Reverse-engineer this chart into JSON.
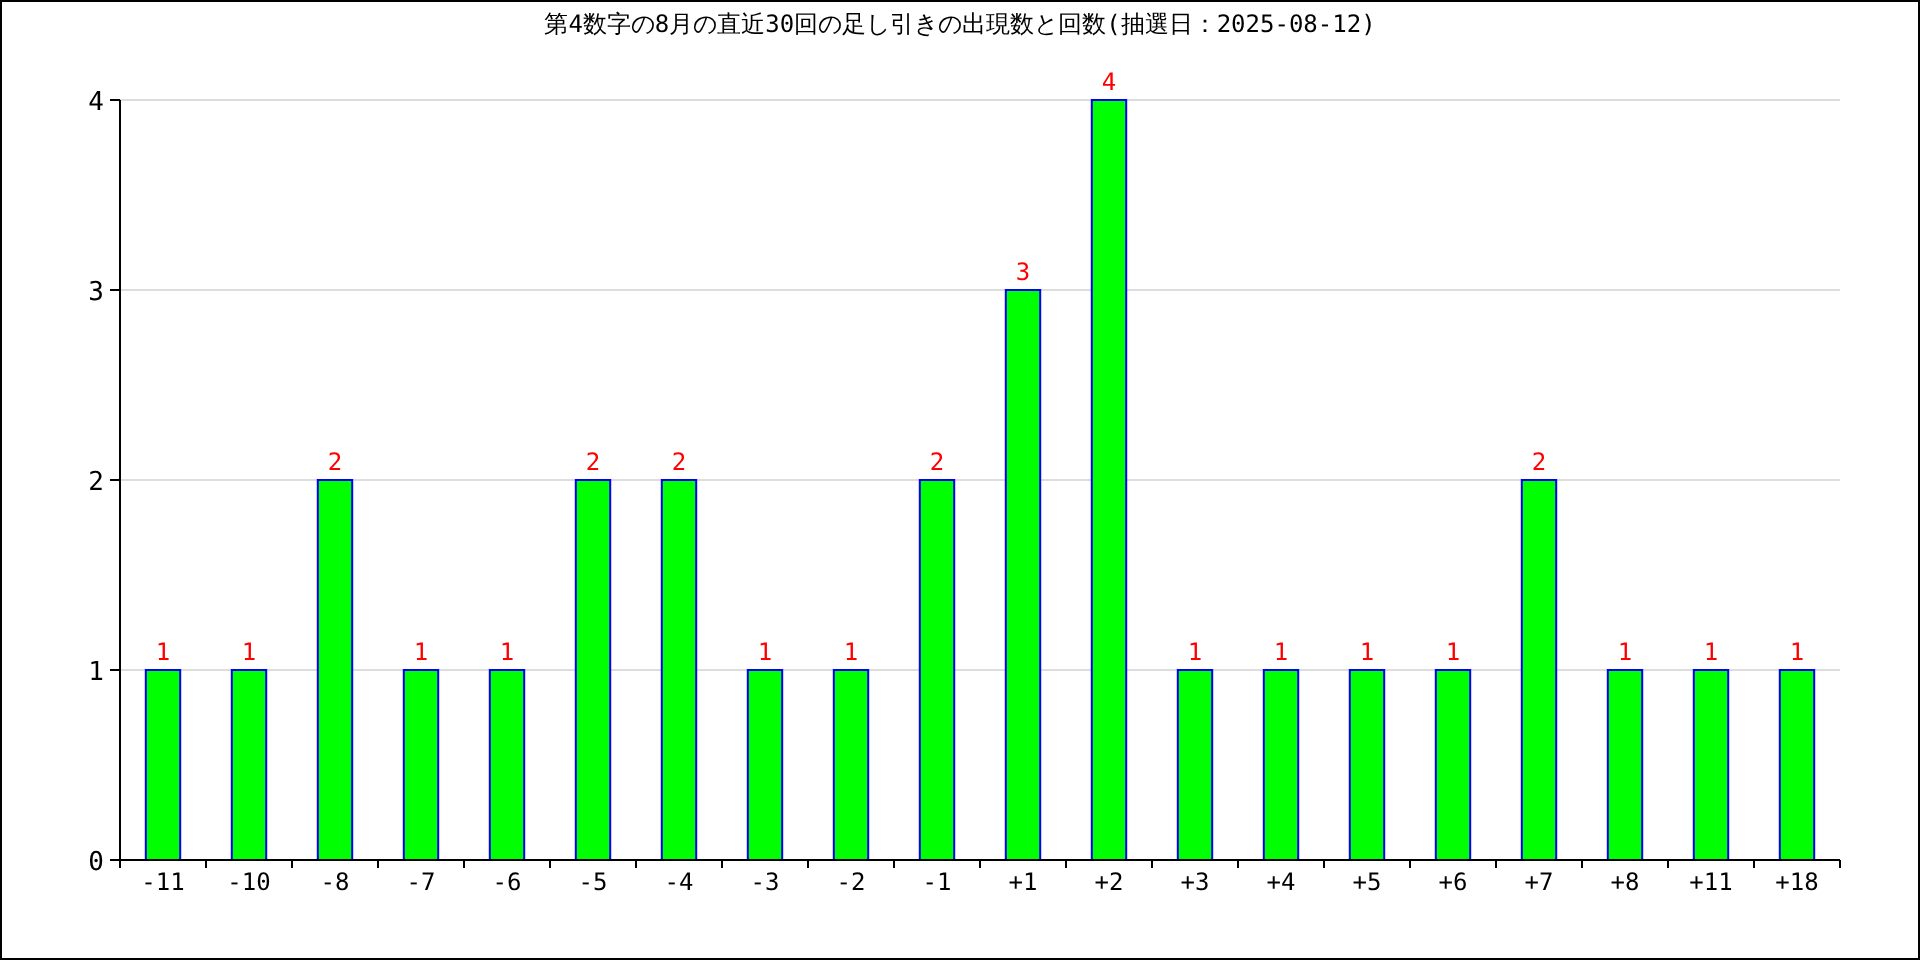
{
  "chart_data": {
    "type": "bar",
    "title": "第4数字の8月の直近30回の足し引きの出現数と回数(抽選日：2025-08-12)",
    "categories": [
      "-11",
      "-10",
      "-8",
      "-7",
      "-6",
      "-5",
      "-4",
      "-3",
      "-2",
      "-1",
      "+1",
      "+2",
      "+3",
      "+4",
      "+5",
      "+6",
      "+7",
      "+8",
      "+11",
      "+18"
    ],
    "values": [
      1,
      1,
      2,
      1,
      1,
      2,
      2,
      1,
      1,
      2,
      3,
      4,
      1,
      1,
      1,
      1,
      2,
      1,
      1,
      1
    ],
    "color": "#00ff00",
    "ylim": [
      0,
      4
    ],
    "yticks": [
      0,
      1,
      2,
      3,
      4
    ],
    "grid": "y",
    "data_labels": true
  }
}
